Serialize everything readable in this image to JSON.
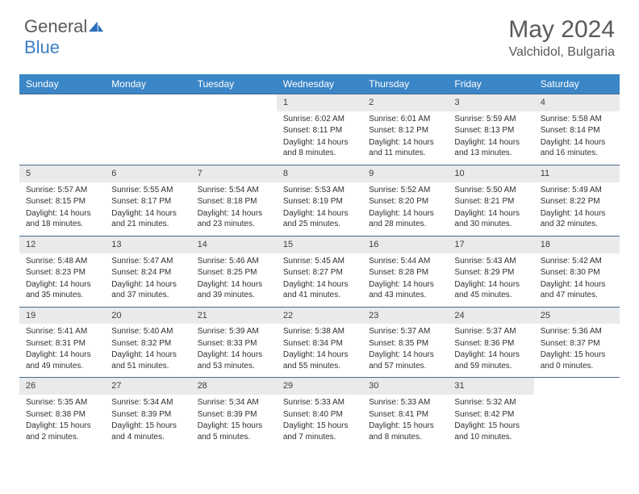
{
  "brand": {
    "text1": "General",
    "text2": "Blue"
  },
  "title": "May 2024",
  "location": "Valchidol, Bulgaria",
  "colors": {
    "header_bg": "#3b86c7",
    "header_fg": "#ffffff",
    "daynum_bg": "#e8eaec",
    "text": "#303030",
    "rule": "#4a6a8a",
    "brand_gray": "#5a5a5a",
    "brand_blue": "#3b7fc4"
  },
  "day_names": [
    "Sunday",
    "Monday",
    "Tuesday",
    "Wednesday",
    "Thursday",
    "Friday",
    "Saturday"
  ],
  "weeks": [
    [
      null,
      null,
      null,
      {
        "n": "1",
        "sr": "6:02 AM",
        "ss": "8:11 PM",
        "dl": "14 hours and 8 minutes."
      },
      {
        "n": "2",
        "sr": "6:01 AM",
        "ss": "8:12 PM",
        "dl": "14 hours and 11 minutes."
      },
      {
        "n": "3",
        "sr": "5:59 AM",
        "ss": "8:13 PM",
        "dl": "14 hours and 13 minutes."
      },
      {
        "n": "4",
        "sr": "5:58 AM",
        "ss": "8:14 PM",
        "dl": "14 hours and 16 minutes."
      }
    ],
    [
      {
        "n": "5",
        "sr": "5:57 AM",
        "ss": "8:15 PM",
        "dl": "14 hours and 18 minutes."
      },
      {
        "n": "6",
        "sr": "5:55 AM",
        "ss": "8:17 PM",
        "dl": "14 hours and 21 minutes."
      },
      {
        "n": "7",
        "sr": "5:54 AM",
        "ss": "8:18 PM",
        "dl": "14 hours and 23 minutes."
      },
      {
        "n": "8",
        "sr": "5:53 AM",
        "ss": "8:19 PM",
        "dl": "14 hours and 25 minutes."
      },
      {
        "n": "9",
        "sr": "5:52 AM",
        "ss": "8:20 PM",
        "dl": "14 hours and 28 minutes."
      },
      {
        "n": "10",
        "sr": "5:50 AM",
        "ss": "8:21 PM",
        "dl": "14 hours and 30 minutes."
      },
      {
        "n": "11",
        "sr": "5:49 AM",
        "ss": "8:22 PM",
        "dl": "14 hours and 32 minutes."
      }
    ],
    [
      {
        "n": "12",
        "sr": "5:48 AM",
        "ss": "8:23 PM",
        "dl": "14 hours and 35 minutes."
      },
      {
        "n": "13",
        "sr": "5:47 AM",
        "ss": "8:24 PM",
        "dl": "14 hours and 37 minutes."
      },
      {
        "n": "14",
        "sr": "5:46 AM",
        "ss": "8:25 PM",
        "dl": "14 hours and 39 minutes."
      },
      {
        "n": "15",
        "sr": "5:45 AM",
        "ss": "8:27 PM",
        "dl": "14 hours and 41 minutes."
      },
      {
        "n": "16",
        "sr": "5:44 AM",
        "ss": "8:28 PM",
        "dl": "14 hours and 43 minutes."
      },
      {
        "n": "17",
        "sr": "5:43 AM",
        "ss": "8:29 PM",
        "dl": "14 hours and 45 minutes."
      },
      {
        "n": "18",
        "sr": "5:42 AM",
        "ss": "8:30 PM",
        "dl": "14 hours and 47 minutes."
      }
    ],
    [
      {
        "n": "19",
        "sr": "5:41 AM",
        "ss": "8:31 PM",
        "dl": "14 hours and 49 minutes."
      },
      {
        "n": "20",
        "sr": "5:40 AM",
        "ss": "8:32 PM",
        "dl": "14 hours and 51 minutes."
      },
      {
        "n": "21",
        "sr": "5:39 AM",
        "ss": "8:33 PM",
        "dl": "14 hours and 53 minutes."
      },
      {
        "n": "22",
        "sr": "5:38 AM",
        "ss": "8:34 PM",
        "dl": "14 hours and 55 minutes."
      },
      {
        "n": "23",
        "sr": "5:37 AM",
        "ss": "8:35 PM",
        "dl": "14 hours and 57 minutes."
      },
      {
        "n": "24",
        "sr": "5:37 AM",
        "ss": "8:36 PM",
        "dl": "14 hours and 59 minutes."
      },
      {
        "n": "25",
        "sr": "5:36 AM",
        "ss": "8:37 PM",
        "dl": "15 hours and 0 minutes."
      }
    ],
    [
      {
        "n": "26",
        "sr": "5:35 AM",
        "ss": "8:38 PM",
        "dl": "15 hours and 2 minutes."
      },
      {
        "n": "27",
        "sr": "5:34 AM",
        "ss": "8:39 PM",
        "dl": "15 hours and 4 minutes."
      },
      {
        "n": "28",
        "sr": "5:34 AM",
        "ss": "8:39 PM",
        "dl": "15 hours and 5 minutes."
      },
      {
        "n": "29",
        "sr": "5:33 AM",
        "ss": "8:40 PM",
        "dl": "15 hours and 7 minutes."
      },
      {
        "n": "30",
        "sr": "5:33 AM",
        "ss": "8:41 PM",
        "dl": "15 hours and 8 minutes."
      },
      {
        "n": "31",
        "sr": "5:32 AM",
        "ss": "8:42 PM",
        "dl": "15 hours and 10 minutes."
      },
      null
    ]
  ],
  "labels": {
    "sunrise": "Sunrise:",
    "sunset": "Sunset:",
    "daylight": "Daylight:"
  }
}
